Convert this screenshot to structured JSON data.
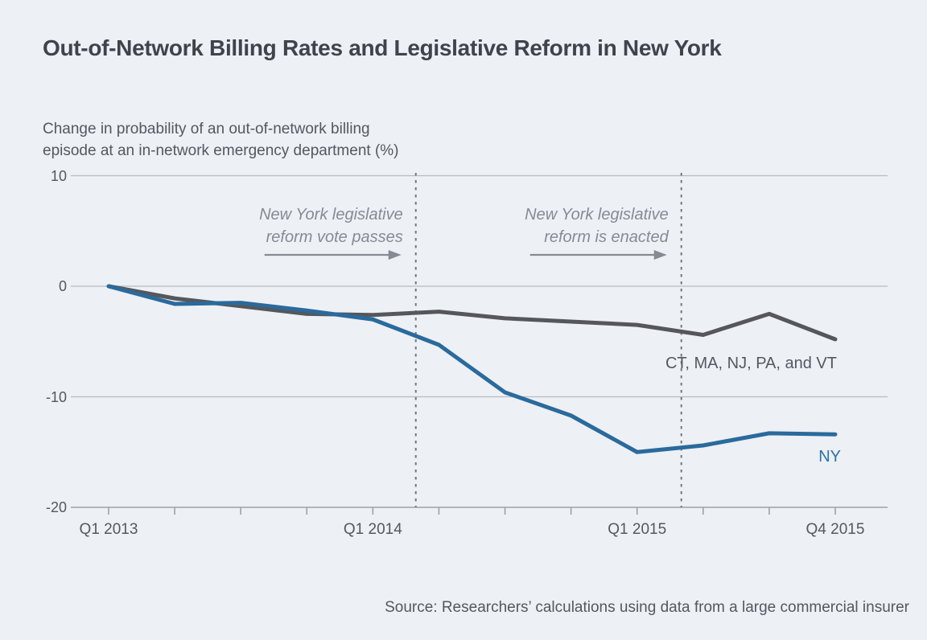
{
  "title": "Out-of-Network Billing Rates and Legislative Reform in New York",
  "subtitle": "Change in probability of an out-of-network billing\nepisode at an in-network emergency department (%)",
  "source": "Source: Researchers’ calculations using data from a large commercial insurer",
  "colors": {
    "background": "#edf0f5",
    "title": "#3f444b",
    "text": "#54585f",
    "annotation": "#868a92",
    "dashed_line": "#73767d",
    "gridline": "#b7bbc2",
    "axis": "#9da2a9",
    "control_line": "#55575a",
    "ny_line": "#2a6a9c",
    "ny_label": "#2a72a8"
  },
  "chart_data": {
    "type": "line",
    "title": "Out-of-Network Billing Rates and Legislative Reform in New York",
    "ylabel": "Change in probability of an out-of-network billing episode at an in-network emergency department (%)",
    "ylim": [
      -20,
      10
    ],
    "y_ticks": [
      10,
      0,
      -10,
      -20
    ],
    "grid": "horizontal",
    "legend_position": "inline-labels",
    "categories": [
      "Q1 2013",
      "Q2 2013",
      "Q3 2013",
      "Q4 2013",
      "Q1 2014",
      "Q2 2014",
      "Q3 2014",
      "Q4 2014",
      "Q1 2015",
      "Q2 2015",
      "Q3 2015",
      "Q4 2015"
    ],
    "x_ticks_labeled": [
      {
        "label": "Q1 2013",
        "index": 0
      },
      {
        "label": "Q1 2014",
        "index": 4
      },
      {
        "label": "Q1 2015",
        "index": 8
      },
      {
        "label": "Q4 2015",
        "index": 11
      }
    ],
    "series": [
      {
        "name": "CT, MA, NJ, PA, and VT",
        "color_key": "control_line",
        "values": [
          0,
          -1.1,
          -1.8,
          -2.5,
          -2.6,
          -2.3,
          -2.9,
          -3.2,
          -3.5,
          -4.4,
          -2.5,
          -4.8
        ]
      },
      {
        "name": "NY",
        "color_key": "ny_line",
        "values": [
          0,
          -1.6,
          -1.5,
          -2.2,
          -3.0,
          -5.3,
          -9.6,
          -11.7,
          -15.0,
          -14.4,
          -13.3,
          -13.4
        ]
      }
    ],
    "annotations": [
      {
        "text": "New York legislative\nreform vote passes",
        "quarter_index": 4.65
      },
      {
        "text": "New York legislative\nreform is enacted",
        "quarter_index": 8.67
      }
    ]
  }
}
